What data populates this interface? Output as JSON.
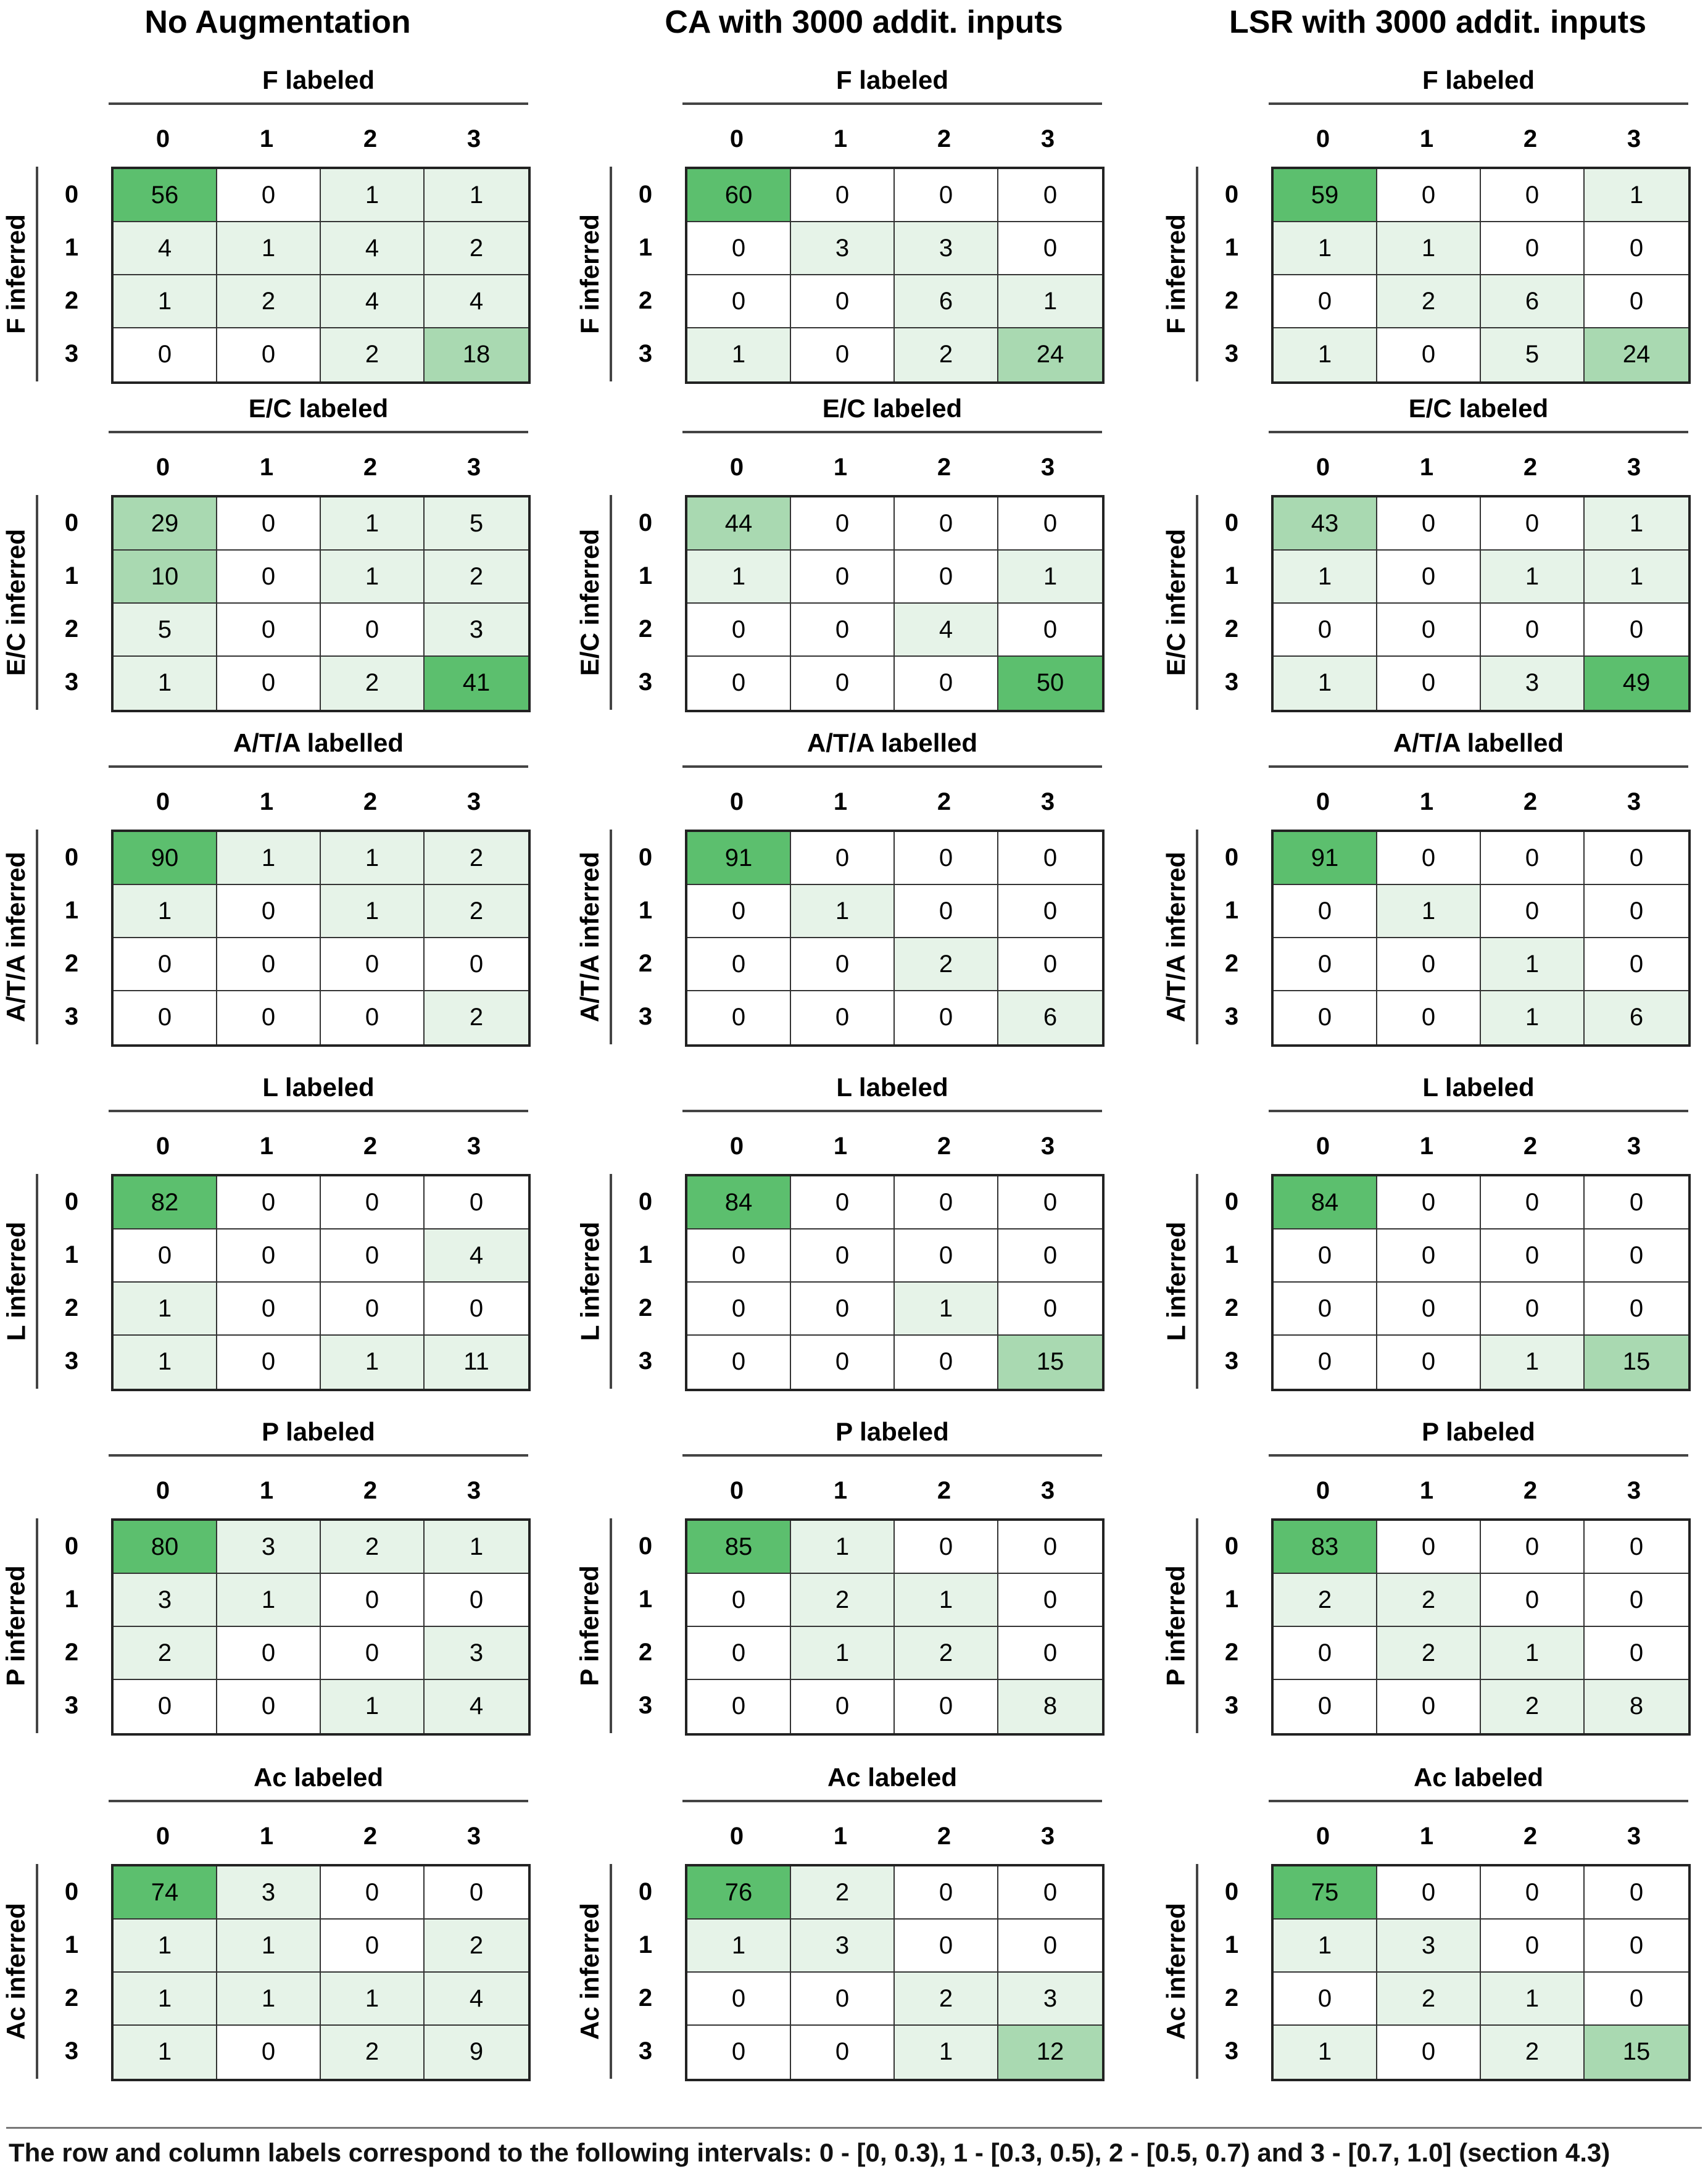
{
  "column_titles": [
    "No Augmentation",
    "CA with 3000 addit. inputs",
    "LSR with 3000 addit. inputs"
  ],
  "footer": "The row and column labels correspond to the following intervals:  0 - [0, 0.3), 1 - [0.3, 0.5), 2 - [0.5, 0.7) and 3 - [0.7, 1.0] (section 4.3)",
  "colors": {
    "max": "#5cbf6e",
    "mid": "#a9d9b1",
    "low": "#e6f3e8",
    "zero": "#ffffff"
  },
  "chart_data": [
    {
      "type": "heatmap",
      "col": 0,
      "labeled_title": "F labeled",
      "inferred_title": "F inferred",
      "categories": [
        "0",
        "1",
        "2",
        "3"
      ],
      "values": [
        [
          56,
          0,
          1,
          1
        ],
        [
          4,
          1,
          4,
          2
        ],
        [
          1,
          2,
          4,
          4
        ],
        [
          0,
          0,
          2,
          18
        ]
      ]
    },
    {
      "type": "heatmap",
      "col": 1,
      "labeled_title": "F labeled",
      "inferred_title": "F inferred",
      "categories": [
        "0",
        "1",
        "2",
        "3"
      ],
      "values": [
        [
          60,
          0,
          0,
          0
        ],
        [
          0,
          3,
          3,
          0
        ],
        [
          0,
          0,
          6,
          1
        ],
        [
          1,
          0,
          2,
          24
        ]
      ]
    },
    {
      "type": "heatmap",
      "col": 2,
      "labeled_title": "F labeled",
      "inferred_title": "F inferred",
      "categories": [
        "0",
        "1",
        "2",
        "3"
      ],
      "values": [
        [
          59,
          0,
          0,
          1
        ],
        [
          1,
          1,
          0,
          0
        ],
        [
          0,
          2,
          6,
          0
        ],
        [
          1,
          0,
          5,
          24
        ]
      ]
    },
    {
      "type": "heatmap",
      "col": 0,
      "labeled_title": "E/C labeled",
      "inferred_title": "E/C inferred",
      "categories": [
        "0",
        "1",
        "2",
        "3"
      ],
      "values": [
        [
          29,
          0,
          1,
          5
        ],
        [
          10,
          0,
          1,
          2
        ],
        [
          5,
          0,
          0,
          3
        ],
        [
          1,
          0,
          2,
          41
        ]
      ]
    },
    {
      "type": "heatmap",
      "col": 1,
      "labeled_title": "E/C labeled",
      "inferred_title": "E/C inferred",
      "categories": [
        "0",
        "1",
        "2",
        "3"
      ],
      "values": [
        [
          44,
          0,
          0,
          0
        ],
        [
          1,
          0,
          0,
          1
        ],
        [
          0,
          0,
          4,
          0
        ],
        [
          0,
          0,
          0,
          50
        ]
      ]
    },
    {
      "type": "heatmap",
      "col": 2,
      "labeled_title": "E/C labeled",
      "inferred_title": "E/C inferred",
      "categories": [
        "0",
        "1",
        "2",
        "3"
      ],
      "values": [
        [
          43,
          0,
          0,
          1
        ],
        [
          1,
          0,
          1,
          1
        ],
        [
          0,
          0,
          0,
          0
        ],
        [
          1,
          0,
          3,
          49
        ]
      ]
    },
    {
      "type": "heatmap",
      "col": 0,
      "labeled_title": "A/T/A labelled",
      "inferred_title": "A/T/A inferred",
      "categories": [
        "0",
        "1",
        "2",
        "3"
      ],
      "values": [
        [
          90,
          1,
          1,
          2
        ],
        [
          1,
          0,
          1,
          2
        ],
        [
          0,
          0,
          0,
          0
        ],
        [
          0,
          0,
          0,
          2
        ]
      ]
    },
    {
      "type": "heatmap",
      "col": 1,
      "labeled_title": "A/T/A labelled",
      "inferred_title": "A/T/A inferred",
      "categories": [
        "0",
        "1",
        "2",
        "3"
      ],
      "values": [
        [
          91,
          0,
          0,
          0
        ],
        [
          0,
          1,
          0,
          0
        ],
        [
          0,
          0,
          2,
          0
        ],
        [
          0,
          0,
          0,
          6
        ]
      ]
    },
    {
      "type": "heatmap",
      "col": 2,
      "labeled_title": "A/T/A labelled",
      "inferred_title": "A/T/A inferred",
      "categories": [
        "0",
        "1",
        "2",
        "3"
      ],
      "values": [
        [
          91,
          0,
          0,
          0
        ],
        [
          0,
          1,
          0,
          0
        ],
        [
          0,
          0,
          1,
          0
        ],
        [
          0,
          0,
          1,
          6
        ]
      ]
    },
    {
      "type": "heatmap",
      "col": 0,
      "labeled_title": "L labeled",
      "inferred_title": "L inferred",
      "categories": [
        "0",
        "1",
        "2",
        "3"
      ],
      "values": [
        [
          82,
          0,
          0,
          0
        ],
        [
          0,
          0,
          0,
          4
        ],
        [
          1,
          0,
          0,
          0
        ],
        [
          1,
          0,
          1,
          11
        ]
      ]
    },
    {
      "type": "heatmap",
      "col": 1,
      "labeled_title": "L labeled",
      "inferred_title": "L inferred",
      "categories": [
        "0",
        "1",
        "2",
        "3"
      ],
      "values": [
        [
          84,
          0,
          0,
          0
        ],
        [
          0,
          0,
          0,
          0
        ],
        [
          0,
          0,
          1,
          0
        ],
        [
          0,
          0,
          0,
          15
        ]
      ]
    },
    {
      "type": "heatmap",
      "col": 2,
      "labeled_title": "L labeled",
      "inferred_title": "L inferred",
      "categories": [
        "0",
        "1",
        "2",
        "3"
      ],
      "values": [
        [
          84,
          0,
          0,
          0
        ],
        [
          0,
          0,
          0,
          0
        ],
        [
          0,
          0,
          0,
          0
        ],
        [
          0,
          0,
          1,
          15
        ]
      ]
    },
    {
      "type": "heatmap",
      "col": 0,
      "labeled_title": "P labeled",
      "inferred_title": "P inferred",
      "categories": [
        "0",
        "1",
        "2",
        "3"
      ],
      "values": [
        [
          80,
          3,
          2,
          1
        ],
        [
          3,
          1,
          0,
          0
        ],
        [
          2,
          0,
          0,
          3
        ],
        [
          0,
          0,
          1,
          4
        ]
      ]
    },
    {
      "type": "heatmap",
      "col": 1,
      "labeled_title": "P labeled",
      "inferred_title": "P inferred",
      "categories": [
        "0",
        "1",
        "2",
        "3"
      ],
      "values": [
        [
          85,
          1,
          0,
          0
        ],
        [
          0,
          2,
          1,
          0
        ],
        [
          0,
          1,
          2,
          0
        ],
        [
          0,
          0,
          0,
          8
        ]
      ]
    },
    {
      "type": "heatmap",
      "col": 2,
      "labeled_title": "P labeled",
      "inferred_title": "P inferred",
      "categories": [
        "0",
        "1",
        "2",
        "3"
      ],
      "values": [
        [
          83,
          0,
          0,
          0
        ],
        [
          2,
          2,
          0,
          0
        ],
        [
          0,
          2,
          1,
          0
        ],
        [
          0,
          0,
          2,
          8
        ]
      ]
    },
    {
      "type": "heatmap",
      "col": 0,
      "labeled_title": "Ac labeled",
      "inferred_title": "Ac inferred",
      "categories": [
        "0",
        "1",
        "2",
        "3"
      ],
      "values": [
        [
          74,
          3,
          0,
          0
        ],
        [
          1,
          1,
          0,
          2
        ],
        [
          1,
          1,
          1,
          4
        ],
        [
          1,
          0,
          2,
          9
        ]
      ]
    },
    {
      "type": "heatmap",
      "col": 1,
      "labeled_title": "Ac labeled",
      "inferred_title": "Ac inferred",
      "categories": [
        "0",
        "1",
        "2",
        "3"
      ],
      "values": [
        [
          76,
          2,
          0,
          0
        ],
        [
          1,
          3,
          0,
          0
        ],
        [
          0,
          0,
          2,
          3
        ],
        [
          0,
          0,
          1,
          12
        ]
      ]
    },
    {
      "type": "heatmap",
      "col": 2,
      "labeled_title": "Ac labeled",
      "inferred_title": "Ac inferred",
      "categories": [
        "0",
        "1",
        "2",
        "3"
      ],
      "values": [
        [
          75,
          0,
          0,
          0
        ],
        [
          1,
          3,
          0,
          0
        ],
        [
          0,
          2,
          1,
          0
        ],
        [
          1,
          0,
          2,
          15
        ]
      ]
    }
  ]
}
